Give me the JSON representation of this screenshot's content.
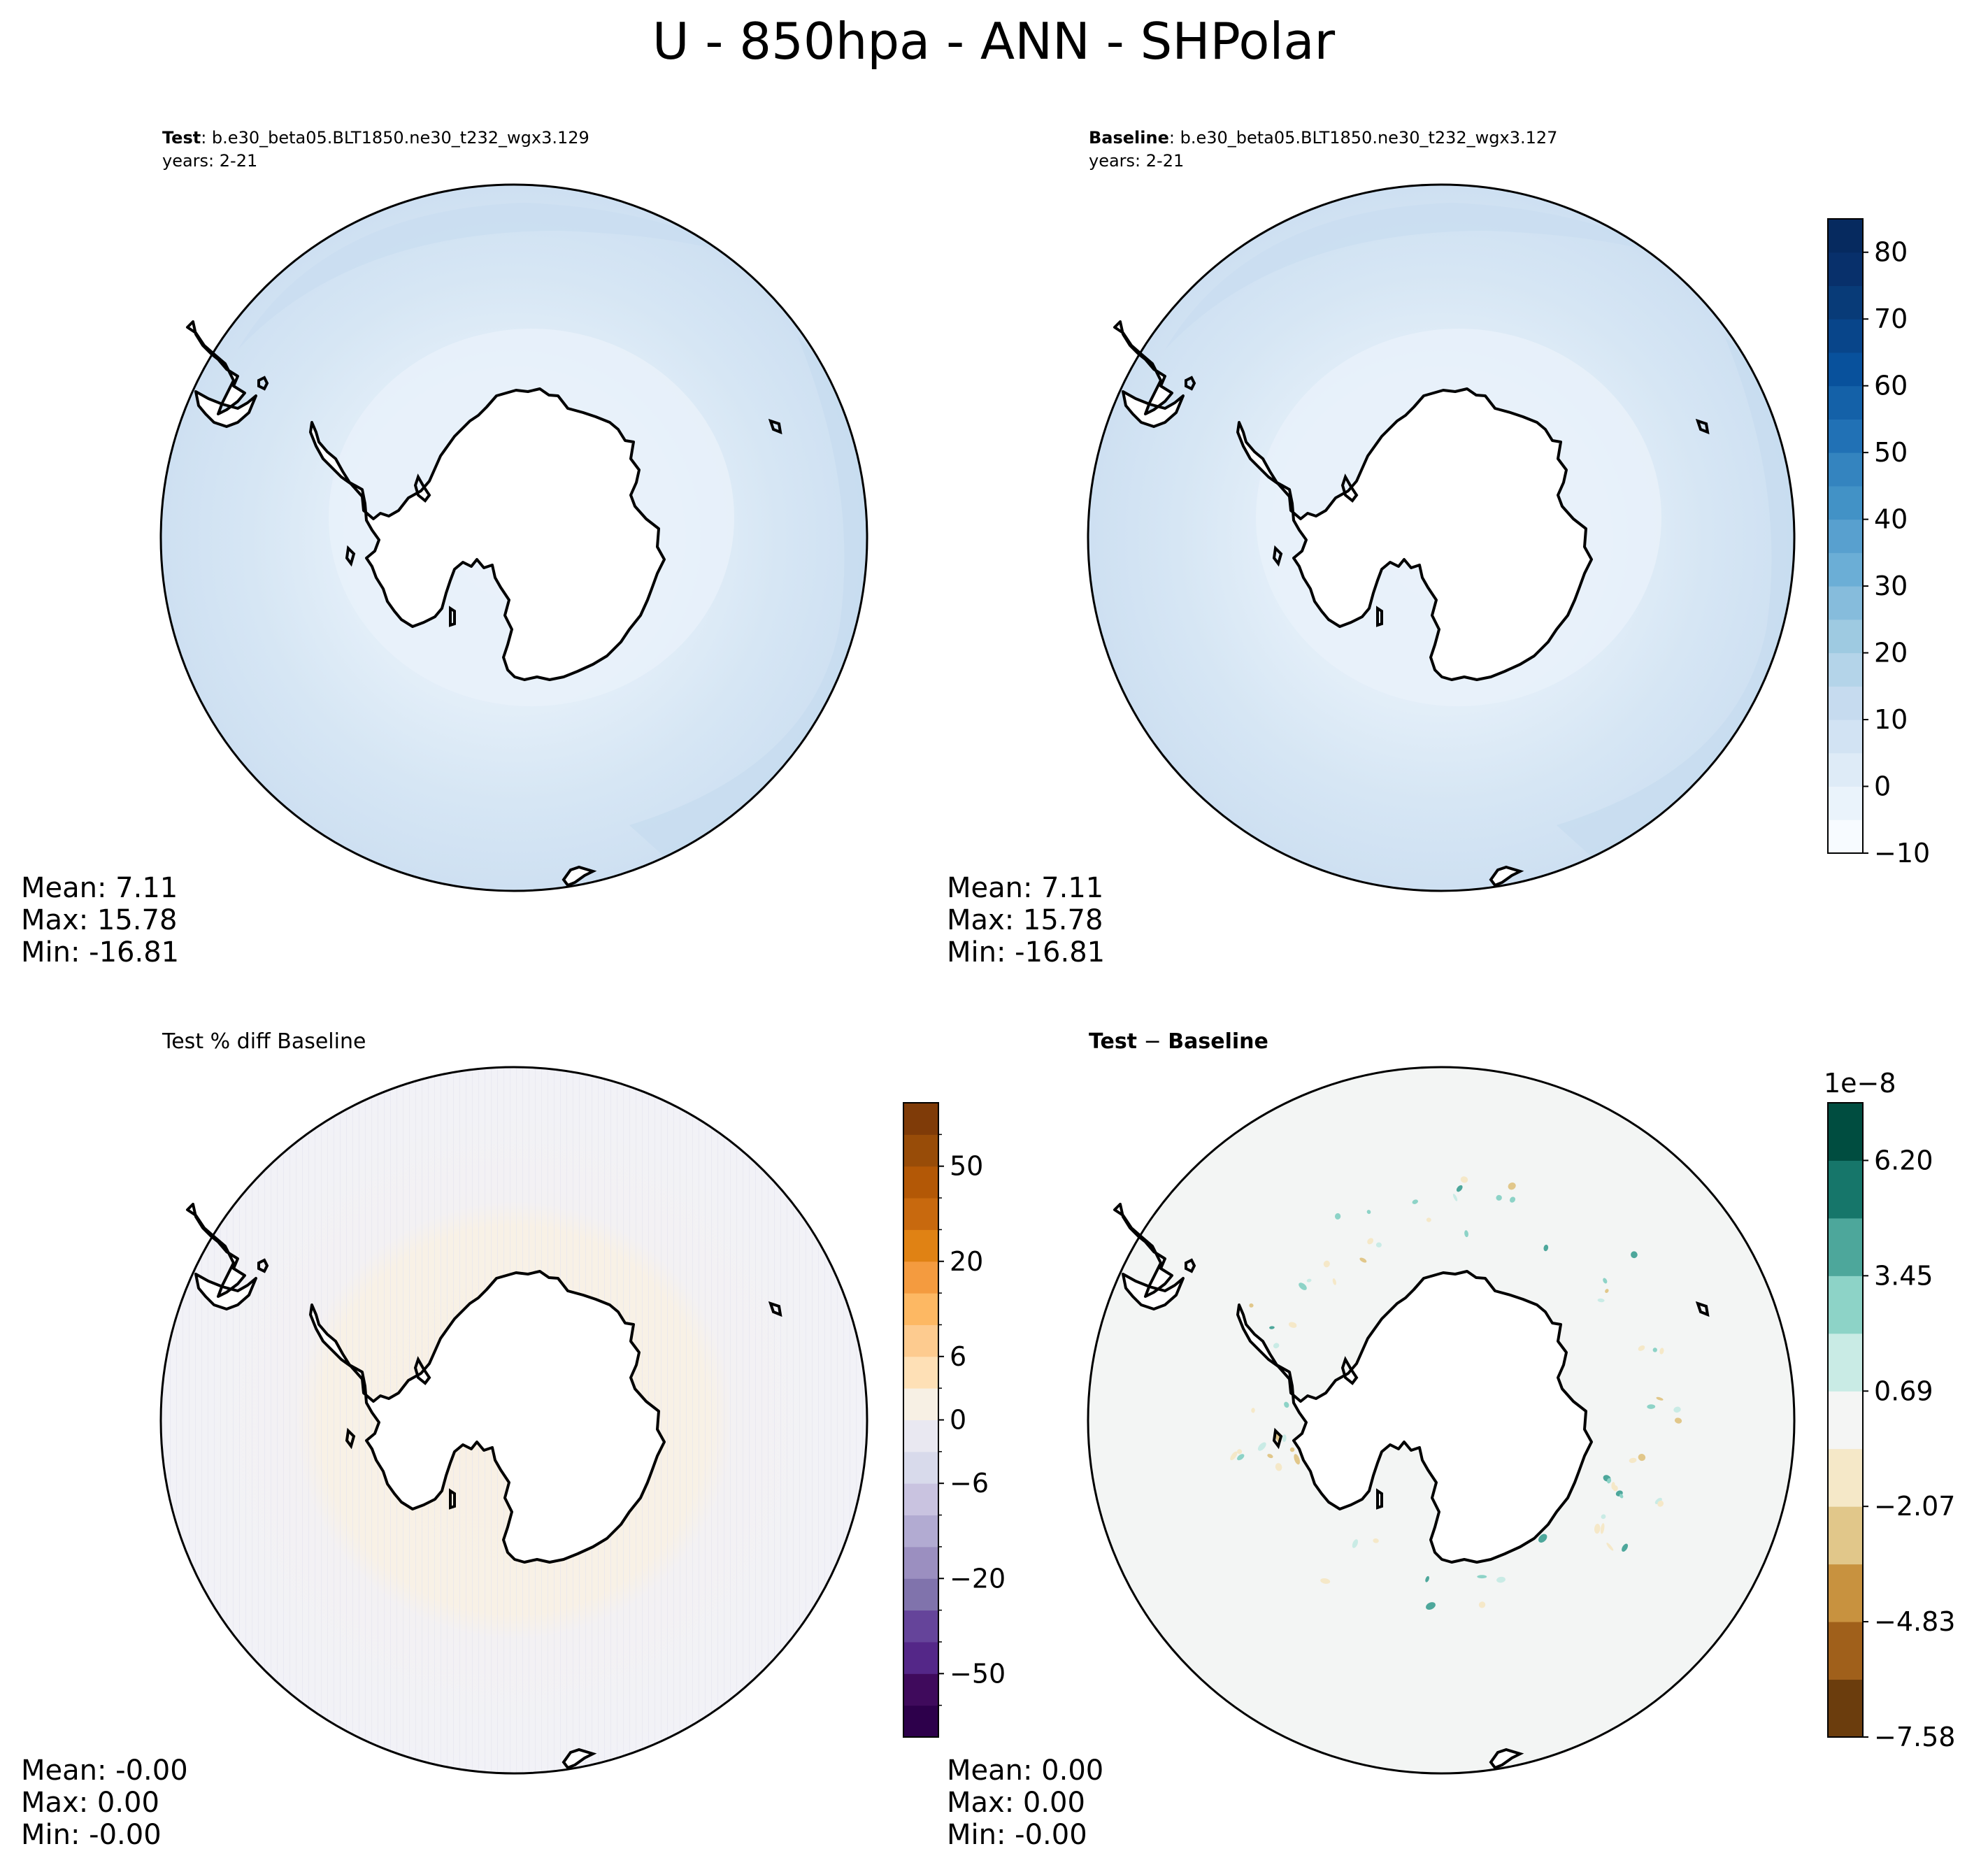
{
  "figure_title": "U - 850hpa - ANN - SHPolar",
  "panels": {
    "test": {
      "title_bold": "Test",
      "title_rest": ": b.e30_beta05.BLT1850.ne30_t232_wgx3.129",
      "years": "years: 2-21",
      "stats": {
        "mean": "Mean:  7.11",
        "max": "Max: 15.78",
        "min": "Min: -16.81"
      }
    },
    "baseline": {
      "title_bold": "Baseline",
      "title_rest": ": b.e30_beta05.BLT1850.ne30_t232_wgx3.127",
      "years": "years: 2-21",
      "stats": {
        "mean": "Mean:  7.11",
        "max": "Max: 15.78",
        "min": "Min: -16.81"
      }
    },
    "pctdiff": {
      "title": "Test % diff Baseline",
      "stats": {
        "mean": "Mean: -0.00",
        "max": "Max:  0.00",
        "min": "Min: -0.00"
      }
    },
    "diff": {
      "title_a": "Test",
      "title_op": " − ",
      "title_b": "Baseline",
      "stats": {
        "mean": "Mean:  0.00",
        "max": "Max:  0.00",
        "min": "Min: -0.00"
      }
    }
  },
  "chart_data": [
    {
      "type": "heatmap",
      "panel": "Test",
      "projection": "south-polar-stereographic",
      "field": "U 850hPa annual mean",
      "mean": 7.11,
      "max": 15.78,
      "min": -16.81,
      "colormap": "Blues",
      "colorbar": "shared-with-baseline"
    },
    {
      "type": "heatmap",
      "panel": "Baseline",
      "projection": "south-polar-stereographic",
      "mean": 7.11,
      "max": 15.78,
      "min": -16.81,
      "colormap": "Blues",
      "colorbar": {
        "range": [
          -10,
          85
        ],
        "tick_values": [
          -10,
          0,
          10,
          20,
          30,
          40,
          50,
          60,
          70,
          80
        ],
        "tick_labels": [
          "−10",
          "0",
          "10",
          "20",
          "30",
          "40",
          "50",
          "60",
          "70",
          "80"
        ],
        "levels": 19,
        "colors": [
          "#f7fbff",
          "#eaf3fb",
          "#deebf7",
          "#d2e3f3",
          "#c6dbef",
          "#b4d4e9",
          "#9ecae1",
          "#86bcdc",
          "#6baed6",
          "#58a0cf",
          "#4292c6",
          "#3484bf",
          "#2171b5",
          "#1461a8",
          "#08519c",
          "#08458a",
          "#083b78",
          "#08306b",
          "#062a5f"
        ]
      }
    },
    {
      "type": "heatmap",
      "panel": "Test % diff Baseline",
      "projection": "south-polar-stereographic",
      "mean": -0.0,
      "max": 0.0,
      "min": -0.0,
      "colormap": "PuOr_r",
      "colorbar": {
        "tick_labels": [
          "−50",
          "−20",
          "−6",
          "0",
          "6",
          "20",
          "50"
        ],
        "colors": [
          "#2d004b",
          "#3f0a5c",
          "#542788",
          "#65449a",
          "#8073ac",
          "#9b8fc0",
          "#b2abd2",
          "#c9c3e0",
          "#d8daeb",
          "#e9e8f1",
          "#f7f0e4",
          "#fee0b6",
          "#fdcb8f",
          "#fdb863",
          "#f49b3f",
          "#e08214",
          "#c8690e",
          "#b35806",
          "#984c08",
          "#7f3b08"
        ]
      }
    },
    {
      "type": "heatmap",
      "panel": "Test − Baseline",
      "projection": "south-polar-stereographic",
      "mean": 0.0,
      "max": 0.0,
      "min": -0.0,
      "colormap": "BrBG",
      "colorbar": {
        "offset_label": "1e−8",
        "tick_labels": [
          "−7.58",
          "−4.83",
          "−2.07",
          "0.69",
          "3.45",
          "6.20"
        ],
        "colors": [
          "#6b3d0d",
          "#a0601b",
          "#c8923f",
          "#e1c78a",
          "#f5e8c8",
          "#f4f5f4",
          "#c9ebe5",
          "#8dd3c7",
          "#4da79b",
          "#16766a",
          "#004d40"
        ]
      }
    }
  ]
}
